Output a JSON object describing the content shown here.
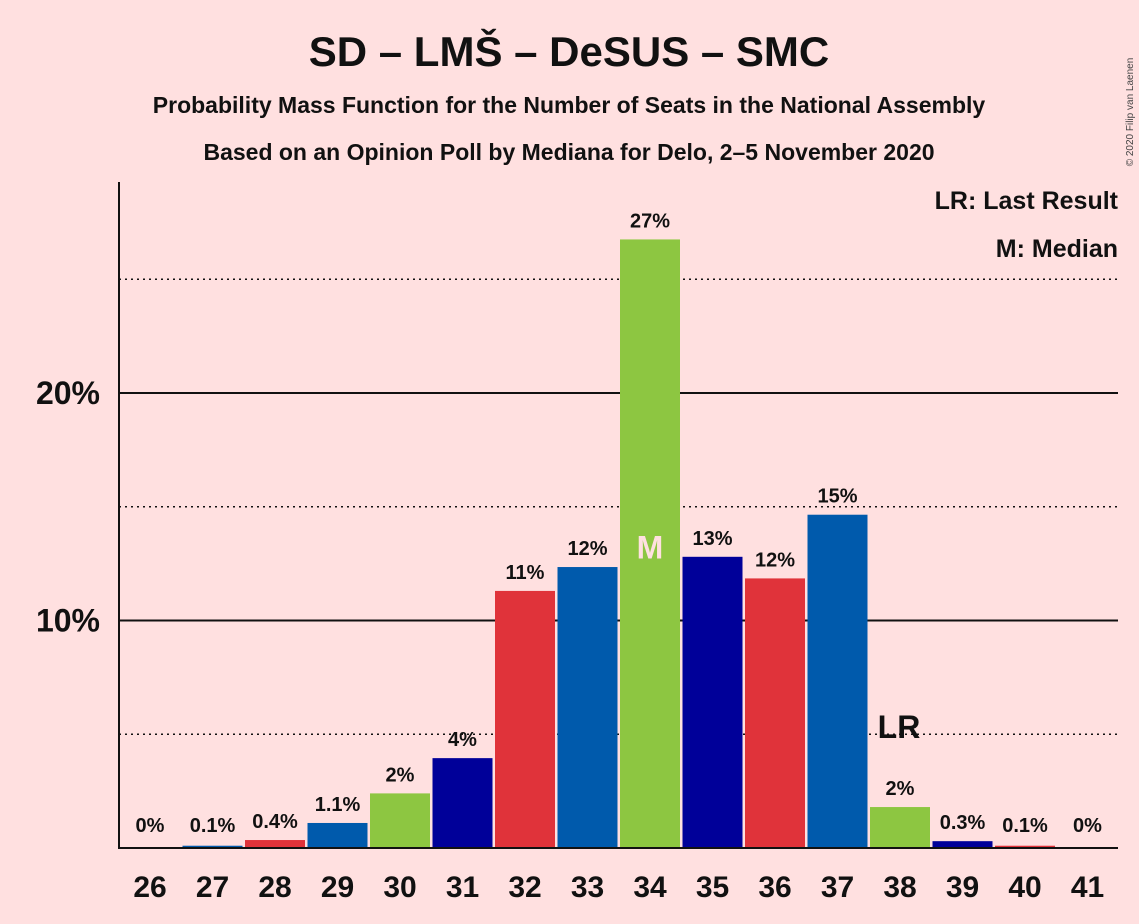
{
  "chart_data": {
    "type": "bar",
    "title": "SD – LMŠ – DeSUS – SMC",
    "subtitle_1": "Probability Mass Function for the Number of Seats in the National Assembly",
    "subtitle_2": "Based on an Opinion Poll by Mediana for Delo, 2–5 November 2020",
    "copyright": "© 2020 Filip van Laenen",
    "legend": {
      "lr": "LR: Last Result",
      "m": "M: Median",
      "placement": "top-right"
    },
    "ylim": [
      0,
      29
    ],
    "yticks": [
      {
        "value": 10,
        "label": "10%"
      },
      {
        "value": 20,
        "label": "20%"
      }
    ],
    "minor_gridlines": [
      5,
      15,
      25
    ],
    "colors": {
      "red": "#E0333A",
      "blue": "#005AAC",
      "green": "#8DC641",
      "navy": "#000099"
    },
    "bars": [
      {
        "seats": "26",
        "value": 0.0,
        "label": "0%",
        "color": "red"
      },
      {
        "seats": "27",
        "value": 0.1,
        "label": "0.1%",
        "color": "blue"
      },
      {
        "seats": "28",
        "value": 0.35,
        "label": "0.4%",
        "color": "red"
      },
      {
        "seats": "29",
        "value": 1.1,
        "label": "1.1%",
        "color": "blue"
      },
      {
        "seats": "30",
        "value": 2.4,
        "label": "2%",
        "color": "green"
      },
      {
        "seats": "31",
        "value": 3.95,
        "label": "4%",
        "color": "navy"
      },
      {
        "seats": "32",
        "value": 11.3,
        "label": "11%",
        "color": "red"
      },
      {
        "seats": "33",
        "value": 12.35,
        "label": "12%",
        "color": "blue"
      },
      {
        "seats": "34",
        "value": 26.75,
        "label": "27%",
        "color": "green"
      },
      {
        "seats": "35",
        "value": 12.8,
        "label": "13%",
        "color": "navy"
      },
      {
        "seats": "36",
        "value": 11.85,
        "label": "12%",
        "color": "red"
      },
      {
        "seats": "37",
        "value": 14.65,
        "label": "15%",
        "color": "blue"
      },
      {
        "seats": "38",
        "value": 1.8,
        "label": "2%",
        "color": "green"
      },
      {
        "seats": "39",
        "value": 0.3,
        "label": "0.3%",
        "color": "navy"
      },
      {
        "seats": "40",
        "value": 0.1,
        "label": "0.1%",
        "color": "red"
      },
      {
        "seats": "41",
        "value": 0.0,
        "label": "0%",
        "color": "blue"
      }
    ],
    "median": {
      "seats": "34",
      "label": "M"
    },
    "last_result": {
      "seats": "38",
      "label": "LR"
    }
  }
}
